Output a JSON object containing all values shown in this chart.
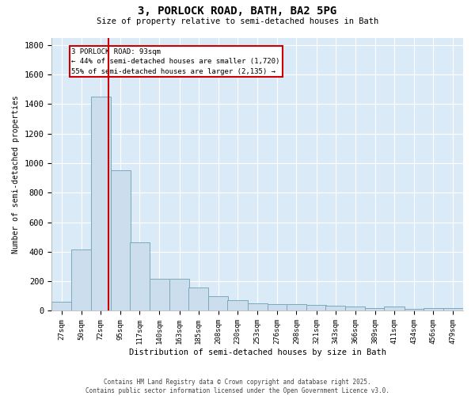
{
  "title": "3, PORLOCK ROAD, BATH, BA2 5PG",
  "subtitle": "Size of property relative to semi-detached houses in Bath",
  "xlabel": "Distribution of semi-detached houses by size in Bath",
  "ylabel": "Number of semi-detached properties",
  "bar_color": "#ccdded",
  "bar_edge_color": "#7aaabb",
  "background_color": "#daeaf7",
  "grid_color": "#ffffff",
  "vline_value": 93,
  "vline_color": "#cc0000",
  "annotation_title": "3 PORLOCK ROAD: 93sqm",
  "annotation_line1": "← 44% of semi-detached houses are smaller (1,720)",
  "annotation_line2": "55% of semi-detached houses are larger (2,135) →",
  "annotation_box_color": "#cc0000",
  "footer_line1": "Contains HM Land Registry data © Crown copyright and database right 2025.",
  "footer_line2": "Contains public sector information licensed under the Open Government Licence v3.0.",
  "bin_labels": [
    "27sqm",
    "50sqm",
    "72sqm",
    "95sqm",
    "117sqm",
    "140sqm",
    "163sqm",
    "185sqm",
    "208sqm",
    "230sqm",
    "253sqm",
    "276sqm",
    "298sqm",
    "321sqm",
    "343sqm",
    "366sqm",
    "389sqm",
    "411sqm",
    "434sqm",
    "456sqm",
    "479sqm"
  ],
  "bin_starts": [
    27,
    50,
    72,
    95,
    117,
    140,
    163,
    185,
    208,
    230,
    253,
    276,
    298,
    321,
    343,
    366,
    389,
    411,
    434,
    456,
    479
  ],
  "bin_width": 23,
  "bar_heights": [
    60,
    415,
    1450,
    950,
    465,
    215,
    215,
    160,
    100,
    70,
    50,
    45,
    45,
    40,
    35,
    28,
    20,
    30,
    12,
    18,
    18
  ],
  "ylim": [
    0,
    1850
  ],
  "yticks": [
    0,
    200,
    400,
    600,
    800,
    1000,
    1200,
    1400,
    1600,
    1800
  ]
}
